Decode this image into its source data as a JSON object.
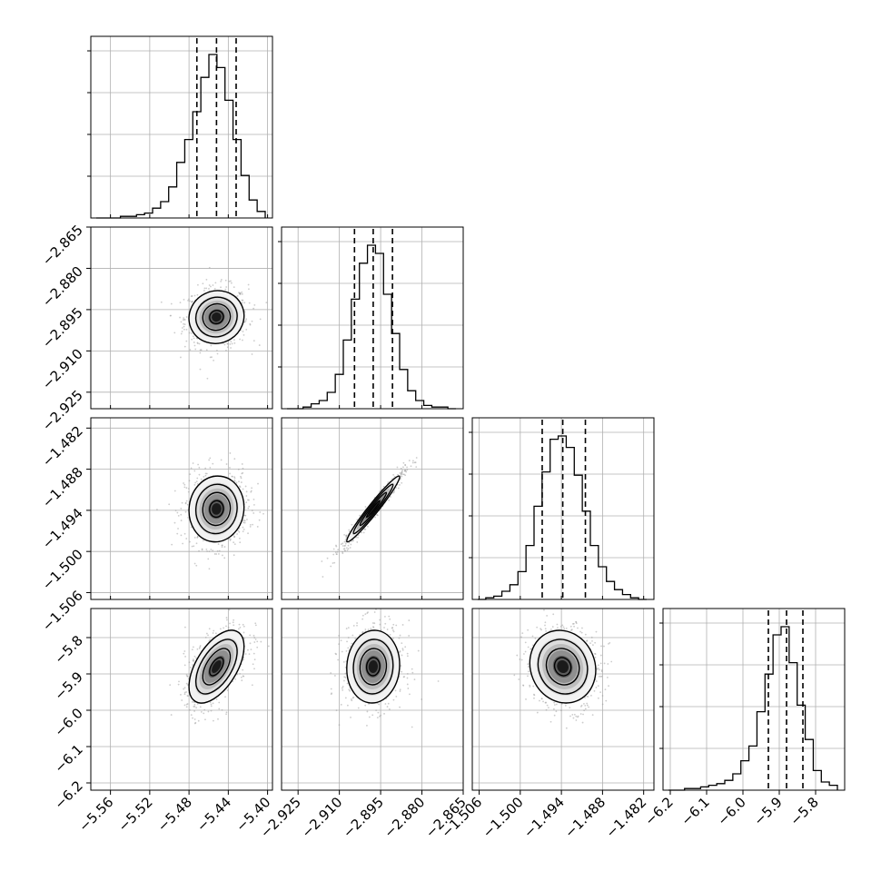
{
  "chart_data": {
    "type": "corner",
    "grid": true,
    "colors": {
      "hist": "#000000",
      "contour": "#000000",
      "samples": "#9a9a9a",
      "grid": "#b0b0b0"
    },
    "params": [
      {
        "range": [
          -5.58,
          -5.395
        ],
        "ticks": [
          "−5.56",
          "−5.52",
          "−5.48",
          "−5.44",
          "−5.40"
        ],
        "tick_values": [
          -5.56,
          -5.52,
          -5.48,
          -5.44,
          -5.4
        ],
        "quantiles": [
          -5.472,
          -5.452,
          -5.432
        ],
        "hist_counts": [
          0,
          0,
          0,
          1,
          1,
          2,
          3,
          6,
          10,
          19,
          34,
          48,
          65,
          86,
          100,
          92,
          72,
          48,
          26,
          11,
          4
        ]
      },
      {
        "range": [
          -2.931,
          -2.865
        ],
        "ticks": [
          "−2.925",
          "−2.910",
          "−2.895",
          "−2.880",
          "−2.865"
        ],
        "tick_values": [
          -2.925,
          -2.91,
          -2.895,
          -2.88,
          -2.865
        ],
        "quantiles": [
          -2.9045,
          -2.8977,
          -2.8907
        ],
        "hist_counts": [
          0,
          0,
          1,
          3,
          5,
          10,
          21,
          42,
          67,
          89,
          100,
          95,
          70,
          46,
          24,
          11,
          5,
          2,
          1,
          1,
          0
        ]
      },
      {
        "range": [
          -1.507,
          -1.4805
        ],
        "ticks": [
          "−1.506",
          "−1.500",
          "−1.494",
          "−1.488",
          "−1.482"
        ],
        "tick_values": [
          -1.506,
          -1.5,
          -1.494,
          -1.488,
          -1.482
        ],
        "quantiles": [
          -1.4968,
          -1.4938,
          -1.4905
        ],
        "hist_counts": [
          0,
          1,
          2,
          5,
          9,
          17,
          33,
          57,
          78,
          98,
          100,
          93,
          76,
          54,
          33,
          20,
          11,
          6,
          3,
          1,
          0
        ]
      },
      {
        "range": [
          -6.22,
          -5.72
        ],
        "ticks": [
          "−6.2",
          "−6.1",
          "−6.0",
          "−5.9",
          "−5.8"
        ],
        "tick_values": [
          -6.2,
          -6.1,
          -6.0,
          -5.9,
          -5.8
        ],
        "quantiles": [
          -5.93,
          -5.88,
          -5.835
        ],
        "hist_counts": [
          0,
          0,
          1,
          1,
          2,
          3,
          4,
          6,
          10,
          18,
          27,
          48,
          71,
          95,
          100,
          78,
          52,
          31,
          12,
          5,
          3
        ]
      }
    ],
    "pairs": [
      {
        "row": 1,
        "col": 0,
        "mean": [
          -5.452,
          -2.8977
        ],
        "sigma": [
          0.014,
          0.0048
        ],
        "rho": 0.05
      },
      {
        "row": 2,
        "col": 0,
        "mean": [
          -5.452,
          -1.4938
        ],
        "sigma": [
          0.014,
          0.0024
        ],
        "rho": 0.05
      },
      {
        "row": 2,
        "col": 1,
        "mean": [
          -2.8977,
          -1.4938
        ],
        "sigma": [
          0.0048,
          0.0024
        ],
        "rho": 0.97
      },
      {
        "row": 3,
        "col": 0,
        "mean": [
          -5.452,
          -5.88
        ],
        "sigma": [
          0.014,
          0.05
        ],
        "rho": 0.55
      },
      {
        "row": 3,
        "col": 1,
        "mean": [
          -2.8977,
          -5.88
        ],
        "sigma": [
          0.0048,
          0.05
        ],
        "rho": 0.05
      },
      {
        "row": 3,
        "col": 2,
        "mean": [
          -1.4938,
          -5.88
        ],
        "sigma": [
          0.0024,
          0.05
        ],
        "rho": -0.1
      }
    ]
  }
}
